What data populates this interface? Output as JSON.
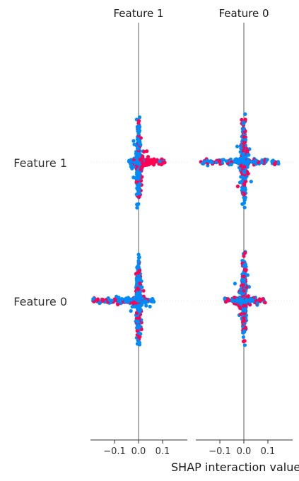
{
  "chart_data": {
    "type": "scatter",
    "title": "",
    "panels": [
      {
        "title": "Feature 1"
      },
      {
        "title": "Feature 0"
      }
    ],
    "rows": [
      "Feature 1",
      "Feature 0"
    ],
    "xlim": [
      -0.19,
      0.2
    ],
    "x_ticks": [
      -0.1,
      0.0,
      0.1
    ],
    "x_tick_labels": [
      "−0.1",
      "0.0",
      "0.1"
    ],
    "xlabel": "SHAP interaction value",
    "grid": false,
    "legend": "none",
    "colors": {
      "low": "#008bfb",
      "high": "#ff0052",
      "zero_line": "#999999",
      "axis": "#333333"
    },
    "cells": [
      {
        "row": "Feature 1",
        "panel": "Feature 1",
        "x_min": -0.04,
        "x_max": 0.11,
        "vertical_spread": 0.95
      },
      {
        "row": "Feature 1",
        "panel": "Feature 0",
        "x_min": -0.18,
        "x_max": 0.15,
        "vertical_spread": 0.95
      },
      {
        "row": "Feature 0",
        "panel": "Feature 1",
        "x_min": -0.19,
        "x_max": 0.07,
        "vertical_spread": 0.95
      },
      {
        "row": "Feature 0",
        "panel": "Feature 0",
        "x_min": -0.08,
        "x_max": 0.09,
        "vertical_spread": 0.95
      }
    ]
  }
}
